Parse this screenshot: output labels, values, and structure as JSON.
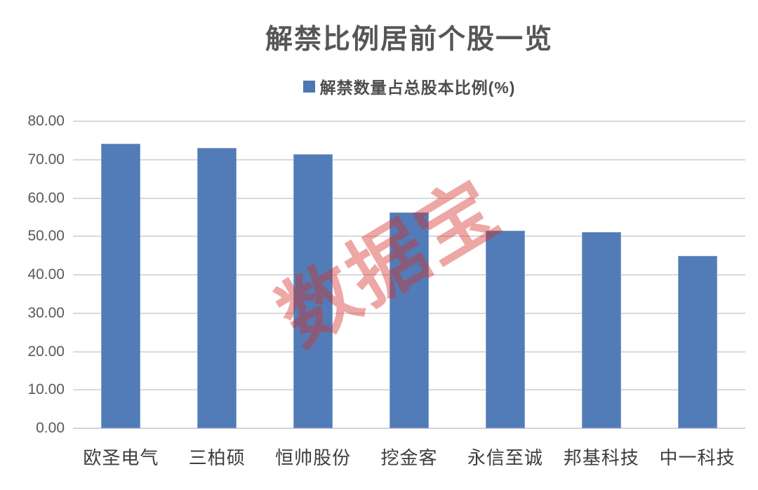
{
  "chart_data": {
    "type": "bar",
    "title": "解禁比例居前个股一览",
    "categories": [
      "欧圣电气",
      "三柏硕",
      "恒帅股份",
      "挖金客",
      "永信至诚",
      "邦基科技",
      "中一科技"
    ],
    "series": [
      {
        "name": "解禁数量占总股本比例(%)",
        "values": [
          74.1,
          73.0,
          71.5,
          56.3,
          51.6,
          51.1,
          44.9
        ]
      }
    ],
    "xlabel": "",
    "ylabel": "",
    "ylim": [
      0,
      80
    ],
    "ytick_step": 10,
    "ytick_labels": [
      "0.00",
      "10.00",
      "20.00",
      "30.00",
      "40.00",
      "50.00",
      "60.00",
      "70.00",
      "80.00"
    ],
    "grid": true,
    "legend_position": "top-center",
    "colors": {
      "bar": "#527cb7",
      "legend_marker": "#4d77b4",
      "gridline": "#d9d9d9",
      "axis_line": "#d4d4d4",
      "title_text": "#565656",
      "ytick_text": "#595959",
      "xtick_text": "#3d3d3d",
      "background": "#ffffff"
    },
    "watermark": {
      "text": "数据宝",
      "color": "rgba(213,45,40,0.42)"
    }
  }
}
